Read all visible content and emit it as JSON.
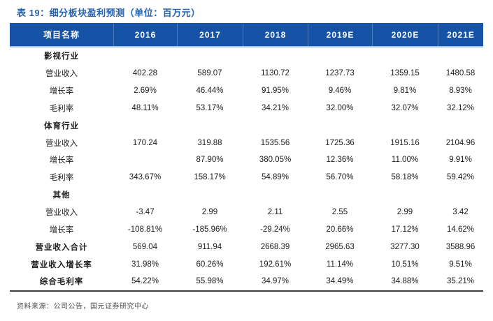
{
  "title": "表 19：细分板块盈利预测（单位：百万元）",
  "table": {
    "columns": [
      "项目名称",
      "2016",
      "2017",
      "2018",
      "2019E",
      "2020E",
      "2021E"
    ],
    "rows": [
      {
        "label": "影视行业",
        "type": "section",
        "values": [
          "",
          "",
          "",
          "",
          "",
          ""
        ]
      },
      {
        "label": "营业收入",
        "type": "data",
        "values": [
          "402.28",
          "589.07",
          "1130.72",
          "1237.73",
          "1359.15",
          "1480.58"
        ]
      },
      {
        "label": "增长率",
        "type": "data",
        "values": [
          "2.69%",
          "46.44%",
          "91.95%",
          "9.46%",
          "9.81%",
          "8.93%"
        ]
      },
      {
        "label": "毛利率",
        "type": "data",
        "values": [
          "48.11%",
          "53.17%",
          "34.21%",
          "32.00%",
          "32.07%",
          "32.12%"
        ]
      },
      {
        "label": "体育行业",
        "type": "section",
        "values": [
          "",
          "",
          "",
          "",
          "",
          ""
        ]
      },
      {
        "label": "营业收入",
        "type": "data",
        "values": [
          "170.24",
          "319.88",
          "1535.56",
          "1725.36",
          "1915.16",
          "2104.96"
        ]
      },
      {
        "label": "增长率",
        "type": "data",
        "values": [
          "",
          "87.90%",
          "380.05%",
          "12.36%",
          "11.00%",
          "9.91%"
        ]
      },
      {
        "label": "毛利率",
        "type": "data",
        "values": [
          "343.67%",
          "158.17%",
          "54.89%",
          "56.70%",
          "58.18%",
          "59.42%"
        ]
      },
      {
        "label": "其他",
        "type": "section",
        "values": [
          "",
          "",
          "",
          "",
          "",
          ""
        ]
      },
      {
        "label": "营业收入",
        "type": "data",
        "values": [
          "-3.47",
          "2.99",
          "2.11",
          "2.55",
          "2.99",
          "3.42"
        ]
      },
      {
        "label": "增长率",
        "type": "data",
        "values": [
          "-108.81%",
          "-185.96%",
          "-29.24%",
          "20.66%",
          "17.12%",
          "14.62%"
        ]
      },
      {
        "label": "营业收入合计",
        "type": "total",
        "values": [
          "569.04",
          "911.94",
          "2668.39",
          "2965.63",
          "3277.30",
          "3588.96"
        ]
      },
      {
        "label": "营业收入增长率",
        "type": "total",
        "values": [
          "31.98%",
          "60.26%",
          "192.61%",
          "11.14%",
          "10.51%",
          "9.51%"
        ]
      },
      {
        "label": "综合毛利率",
        "type": "total",
        "values": [
          "54.22%",
          "55.98%",
          "34.97%",
          "34.49%",
          "34.88%",
          "35.21%"
        ]
      }
    ]
  },
  "footer": {
    "source": "资料来源：公司公告，国元证券研究中心"
  },
  "colors": {
    "title_text": "#2563AF",
    "header_bg": "#1653A6",
    "header_text": "#FFFFFF",
    "header_divider": "#4F7EC0",
    "header_underline": "#9CC2E5",
    "table_bottom_border": "#3F3F3F",
    "body_text": "#1C1C1C",
    "source_text": "#4D4D4D"
  }
}
